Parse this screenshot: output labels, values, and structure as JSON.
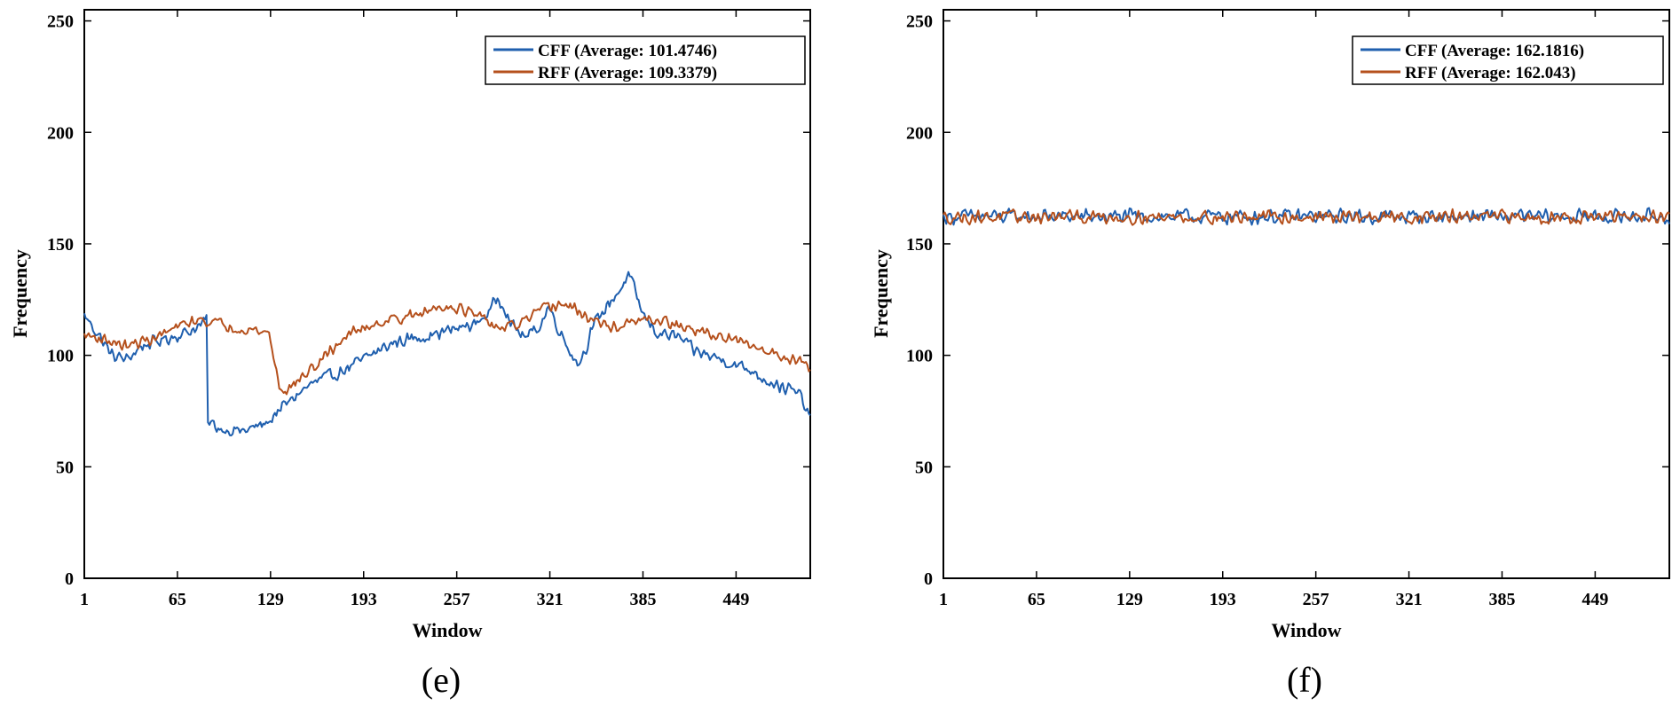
{
  "figure": {
    "panels": [
      "(e)",
      "(f)"
    ]
  },
  "colors": {
    "cff": "#1f5fae",
    "rff": "#b5501c"
  },
  "chart_data": [
    {
      "type": "line",
      "panel_label": "(e)",
      "title": "",
      "xlabel": "Window",
      "ylabel": "Frequency",
      "xlim": [
        1,
        500
      ],
      "ylim": [
        0,
        255
      ],
      "xticks": [
        1,
        65,
        129,
        193,
        257,
        321,
        385,
        449
      ],
      "yticks": [
        0,
        50,
        100,
        150,
        200,
        250
      ],
      "legend_position": "top-right",
      "series": [
        {
          "name": "CFF (Average: 101.4746)",
          "profile_x": [
            1,
            10,
            20,
            30,
            40,
            50,
            60,
            70,
            80,
            85,
            86,
            95,
            110,
            120,
            128,
            132,
            140,
            150,
            160,
            175,
            190,
            200,
            215,
            230,
            245,
            257,
            270,
            280,
            285,
            290,
            295,
            305,
            315,
            320,
            330,
            340,
            345,
            350,
            360,
            370,
            375,
            380,
            385,
            395,
            410,
            420,
            430,
            440,
            460,
            470,
            480,
            488,
            493,
            497,
            500
          ],
          "profile_y": [
            118,
            110,
            100,
            98,
            104,
            106,
            108,
            110,
            113,
            116,
            70,
            67,
            66,
            68,
            70,
            74,
            78,
            84,
            88,
            92,
            97,
            101,
            106,
            108,
            110,
            112,
            114,
            120,
            126,
            122,
            113,
            108,
            114,
            122,
            108,
            96,
            102,
            112,
            122,
            130,
            136,
            128,
            118,
            110,
            108,
            102,
            100,
            98,
            93,
            89,
            86,
            84,
            82,
            76,
            72
          ],
          "noise": 3.5
        },
        {
          "name": "RFF (Average: 109.3379)",
          "profile_x": [
            1,
            10,
            20,
            30,
            40,
            50,
            60,
            70,
            80,
            90,
            100,
            120,
            128,
            135,
            140,
            150,
            160,
            170,
            180,
            190,
            200,
            210,
            220,
            230,
            245,
            255,
            270,
            280,
            290,
            300,
            310,
            320,
            330,
            340,
            350,
            360,
            370,
            380,
            390,
            400,
            410,
            420,
            430,
            440,
            450,
            460,
            470,
            480,
            490,
            500
          ],
          "profile_y": [
            109,
            108,
            106,
            104,
            106,
            108,
            111,
            114,
            116,
            115,
            113,
            111,
            110,
            86,
            84,
            90,
            95,
            102,
            108,
            112,
            114,
            116,
            117,
            118,
            122,
            122,
            118,
            114,
            112,
            114,
            118,
            122,
            123,
            120,
            116,
            113,
            113,
            115,
            116,
            115,
            113,
            111,
            110,
            108,
            106,
            104,
            102,
            100,
            98,
            95
          ],
          "noise": 3
        }
      ]
    },
    {
      "type": "line",
      "panel_label": "(f)",
      "title": "",
      "xlabel": "Window",
      "ylabel": "Frequency",
      "xlim": [
        1,
        500
      ],
      "ylim": [
        0,
        255
      ],
      "xticks": [
        1,
        65,
        129,
        193,
        257,
        321,
        385,
        449
      ],
      "yticks": [
        0,
        50,
        100,
        150,
        200,
        250
      ],
      "legend_position": "top-right",
      "series": [
        {
          "name": "CFF (Average: 162.1816)",
          "profile_x": [
            1,
            500
          ],
          "profile_y": [
            162.2,
            162.2
          ],
          "noise": 4
        },
        {
          "name": "RFF (Average: 162.043)",
          "profile_x": [
            1,
            500
          ],
          "profile_y": [
            162.0,
            162.0
          ],
          "noise": 3.6
        }
      ]
    }
  ]
}
